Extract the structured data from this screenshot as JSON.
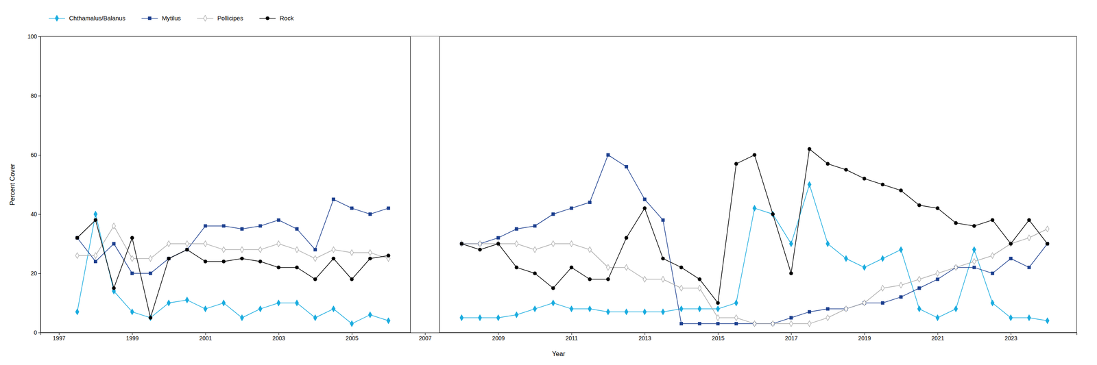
{
  "chart_data": {
    "type": "line",
    "xlabel": "Year",
    "ylabel": "Percent Cover",
    "xlim": [
      1996.5,
      2024.8
    ],
    "xticks": [
      1997,
      1999,
      2001,
      2003,
      2005,
      2007,
      2009,
      2011,
      2013,
      2015,
      2017,
      2019,
      2021,
      2023
    ],
    "ylim": [
      0,
      100
    ],
    "yticks": [
      0,
      20,
      40,
      60,
      80,
      100
    ],
    "grid": false,
    "legend": "top",
    "gap": [
      2006.6,
      2007.4
    ],
    "x": [
      1997.5,
      1998.0,
      1998.5,
      1999.0,
      1999.5,
      2000.0,
      2000.5,
      2001.0,
      2001.5,
      2002.0,
      2002.5,
      2003.0,
      2003.5,
      2004.0,
      2004.5,
      2005.0,
      2005.5,
      2006.0,
      2008.0,
      2008.5,
      2009.0,
      2009.5,
      2010.0,
      2010.5,
      2011.0,
      2011.5,
      2012.0,
      2012.5,
      2013.0,
      2013.5,
      2014.0,
      2014.5,
      2015.0,
      2015.5,
      2016.0,
      2016.5,
      2017.0,
      2017.5,
      2018.0,
      2018.5,
      2019.0,
      2019.5,
      2020.0,
      2020.5,
      2021.0,
      2021.5,
      2022.0,
      2022.5,
      2023.0,
      2023.5,
      2024.0
    ],
    "series": [
      {
        "name": "Chthamalus/Balanus",
        "color": "#1AACDF",
        "marker": "diamond",
        "values": [
          7,
          40,
          14,
          7,
          5,
          10,
          11,
          8,
          10,
          5,
          8,
          10,
          10,
          5,
          8,
          3,
          6,
          4,
          5,
          5,
          5,
          6,
          8,
          10,
          8,
          8,
          7,
          7,
          7,
          7,
          8,
          8,
          8,
          10,
          42,
          40,
          30,
          50,
          30,
          25,
          22,
          25,
          28,
          8,
          5,
          8,
          28,
          10,
          5,
          5,
          4
        ]
      },
      {
        "name": "Mytilus",
        "color": "#1C3F8F",
        "marker": "square",
        "values": [
          32,
          24,
          30,
          20,
          20,
          25,
          28,
          36,
          36,
          35,
          36,
          38,
          35,
          28,
          45,
          42,
          40,
          42,
          30,
          30,
          32,
          35,
          36,
          40,
          42,
          44,
          60,
          56,
          45,
          38,
          3,
          3,
          3,
          3,
          3,
          3,
          5,
          7,
          8,
          8,
          10,
          10,
          12,
          15,
          18,
          22,
          22,
          20,
          25,
          22,
          30
        ]
      },
      {
        "name": "Pollicipes",
        "color": "#AAAAAA",
        "marker": "open-diamond",
        "values": [
          26,
          26,
          36,
          25,
          25,
          30,
          30,
          30,
          28,
          28,
          28,
          30,
          28,
          25,
          28,
          27,
          27,
          25,
          30,
          30,
          30,
          30,
          28,
          30,
          30,
          28,
          22,
          22,
          18,
          18,
          15,
          15,
          5,
          5,
          3,
          3,
          3,
          3,
          5,
          8,
          10,
          15,
          16,
          18,
          20,
          22,
          24,
          26,
          30,
          32,
          35
        ]
      },
      {
        "name": "Rock",
        "color": "#000000",
        "marker": "circle",
        "values": [
          32,
          38,
          15,
          32,
          5,
          25,
          28,
          24,
          24,
          25,
          24,
          22,
          22,
          18,
          25,
          18,
          25,
          26,
          30,
          28,
          30,
          22,
          20,
          15,
          22,
          18,
          18,
          32,
          42,
          25,
          22,
          18,
          10,
          57,
          60,
          40,
          20,
          62,
          57,
          55,
          52,
          50,
          48,
          43,
          42,
          37,
          36,
          38,
          30,
          38,
          30
        ]
      }
    ]
  }
}
